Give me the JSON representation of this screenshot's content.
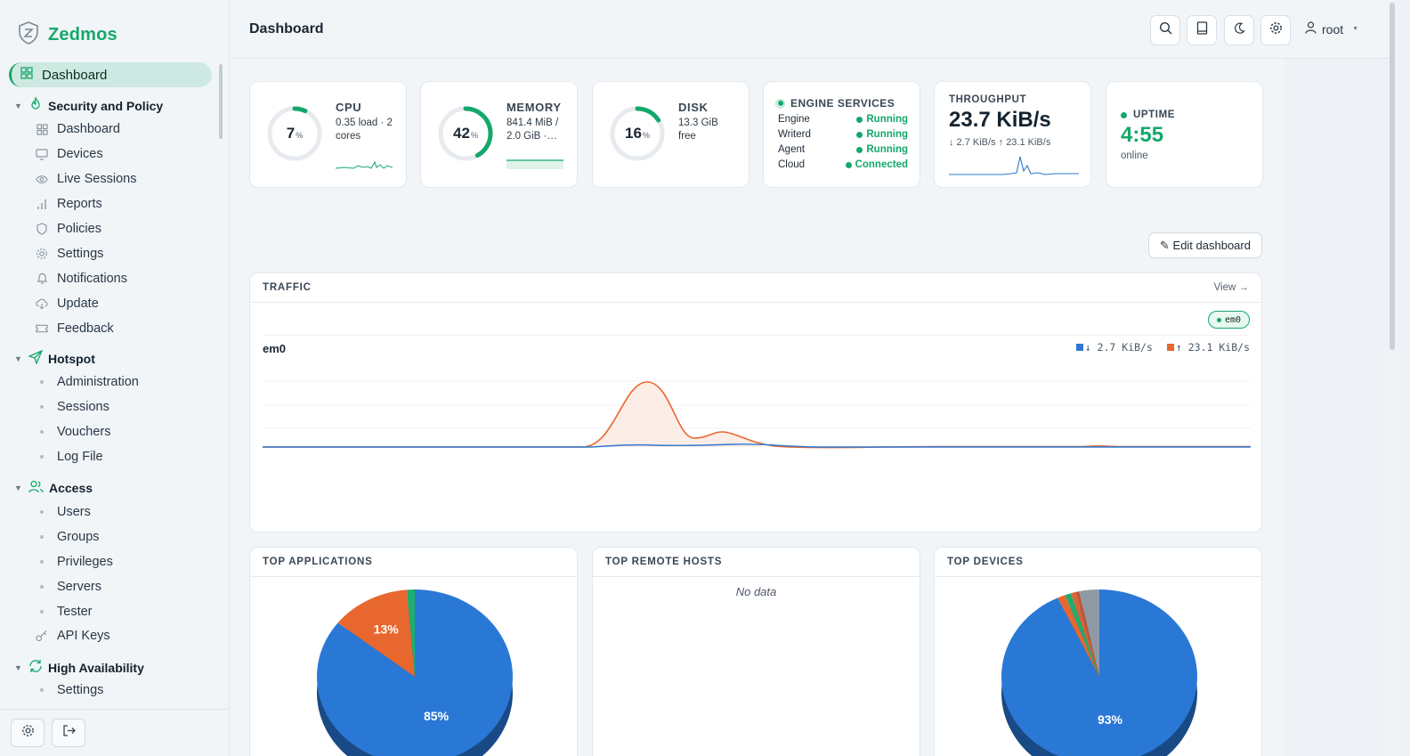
{
  "app": {
    "name": "Zedmos"
  },
  "nav": {
    "active": "Dashboard",
    "sections": [
      {
        "label": "Security and Policy",
        "items": [
          "Dashboard",
          "Devices",
          "Live Sessions",
          "Reports",
          "Policies",
          "Settings",
          "Notifications",
          "Update",
          "Feedback"
        ]
      },
      {
        "label": "Hotspot",
        "items": [
          "Administration",
          "Sessions",
          "Vouchers",
          "Log File"
        ]
      },
      {
        "label": "Access",
        "items": [
          "Users",
          "Groups",
          "Privileges",
          "Servers",
          "Tester",
          "API Keys"
        ]
      },
      {
        "label": "High Availability",
        "items": [
          "Settings"
        ]
      }
    ]
  },
  "header": {
    "title": "Dashboard",
    "user": "root"
  },
  "stats": {
    "cpu": {
      "title": "CPU",
      "value": "7",
      "unit": "%",
      "percent": 7,
      "sub": "0.35 load · 2 cores"
    },
    "memory": {
      "title": "MEMORY",
      "value": "42",
      "unit": "%",
      "percent": 42,
      "sub": "841.4 MiB / 2.0 GiB ·…"
    },
    "disk": {
      "title": "DISK",
      "value": "16",
      "unit": "%",
      "percent": 16,
      "sub": "13.3 GiB free"
    },
    "services": {
      "title": "ENGINE SERVICES",
      "rows": [
        {
          "name": "Engine",
          "status": "Running"
        },
        {
          "name": "Writerd",
          "status": "Running"
        },
        {
          "name": "Agent",
          "status": "Running"
        },
        {
          "name": "Cloud",
          "status": "Connected"
        }
      ]
    },
    "throughput": {
      "title": "THROUGHPUT",
      "value": "23.7 KiB/s",
      "sub": "↓ 2.7 KiB/s ↑ 23.1 KiB/s"
    },
    "uptime": {
      "title": "UPTIME",
      "value": "4:55",
      "sub": "online"
    }
  },
  "edit_dashboard": "✎ Edit dashboard",
  "traffic": {
    "title": "TRAFFIC",
    "link": "View →",
    "pill": "em0",
    "iface": "em0",
    "legend": [
      {
        "label": "↓ 2.7 KiB/s",
        "color": "#2f78d2"
      },
      {
        "label": "↑ 23.1 KiB/s",
        "color": "#e8672e"
      }
    ]
  },
  "top_apps": {
    "title": "TOP APPLICATIONS",
    "slices": [
      {
        "pct": 85,
        "label": "85%",
        "color": "#2a78d6"
      },
      {
        "pct": 13,
        "label": "13%",
        "color": "#e8672e"
      },
      {
        "pct": 1.3,
        "label": "",
        "color": "#1fae6f"
      }
    ]
  },
  "top_hosts": {
    "title": "TOP REMOTE HOSTS",
    "empty": "No data"
  },
  "top_devices": {
    "title": "TOP DEVICES",
    "slices": [
      {
        "pct": 93,
        "label": "93%",
        "color": "#2a78d6"
      },
      {
        "pct": 1.3,
        "label": "",
        "color": "#e8672e"
      },
      {
        "pct": 1.0,
        "label": "",
        "color": "#1fae6f"
      },
      {
        "pct": 0.8,
        "label": "",
        "color": "#d6653c"
      },
      {
        "pct": 0.6,
        "label": "",
        "color": "#c0572f"
      },
      {
        "pct": 3.3,
        "label": "",
        "color": "#8f9aa6"
      }
    ]
  },
  "colors": {
    "accent": "#14a86b",
    "download": "#2f78d2",
    "upload": "#e8672e"
  }
}
